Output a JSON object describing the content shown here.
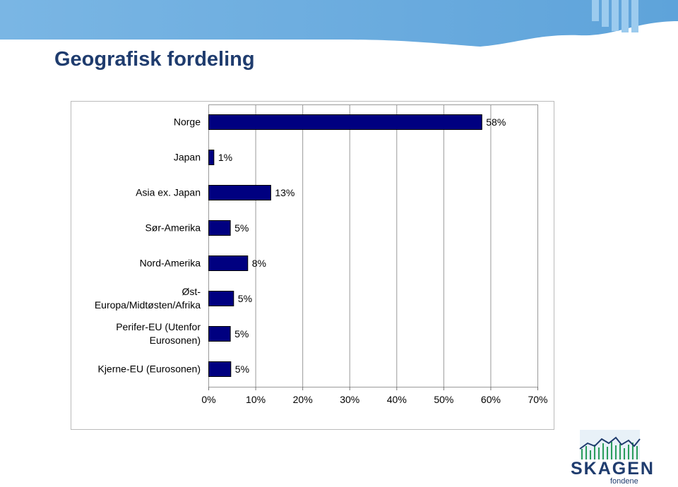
{
  "header": {
    "title": "Geografisk fordeling"
  },
  "logo": {
    "name": "SKAGEN",
    "sub": "fondene"
  },
  "chart_data": {
    "type": "bar",
    "orientation": "horizontal",
    "categories": [
      "Norge",
      "Japan",
      "Asia ex. Japan",
      "Sør-Amerika",
      "Nord-Amerika",
      "Øst-Europa/Midtøsten/Afrika",
      "Perifer-EU (Utenfor Eurosonen)",
      "Kjerne-EU (Eurosonen)"
    ],
    "values": [
      58.1,
      1.1,
      13.2,
      4.6,
      8.3,
      5.3,
      4.6,
      4.7
    ],
    "value_labels": [
      "58%",
      "1%",
      "13%",
      "5%",
      "8%",
      "5%",
      "5%",
      "5%"
    ],
    "color": "#000080",
    "xlim": [
      0,
      70
    ],
    "xticks": [
      {
        "value": 0,
        "label": "0%"
      },
      {
        "value": 10,
        "label": "10%"
      },
      {
        "value": 20,
        "label": "20%"
      },
      {
        "value": 30,
        "label": "30%"
      },
      {
        "value": 40,
        "label": "40%"
      },
      {
        "value": 50,
        "label": "50%"
      },
      {
        "value": 60,
        "label": "60%"
      },
      {
        "value": 70,
        "label": "70%"
      }
    ],
    "grid": true
  }
}
